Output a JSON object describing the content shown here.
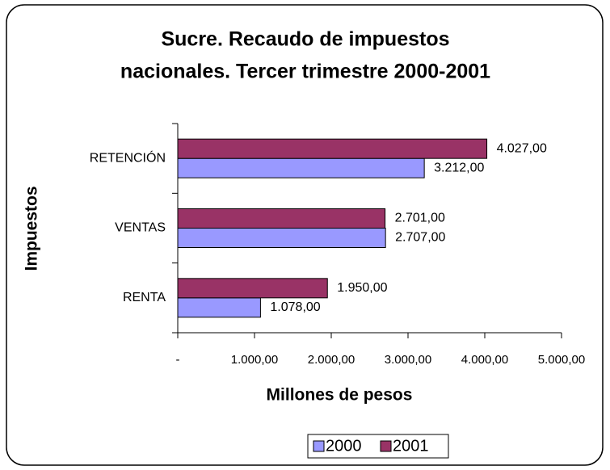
{
  "chart_data": {
    "type": "barh",
    "title": [
      "Sucre. Recaudo de impuestos",
      "nacionales. Tercer trimestre 2000-2001"
    ],
    "x_label": "Millones de pesos",
    "y_label": "Impuestos",
    "categories": [
      "RENTA",
      "VENTAS",
      "RETENCIÓN"
    ],
    "series": [
      {
        "name": "2000",
        "color": "#9999ff",
        "values": [
          1078,
          2707,
          3212
        ],
        "value_labels": [
          "1.078,00",
          "2.707,00",
          "3.212,00"
        ]
      },
      {
        "name": "2001",
        "color": "#993366",
        "values": [
          1950,
          2701,
          4027
        ],
        "value_labels": [
          "1.950,00",
          "2.701,00",
          "4.027,00"
        ]
      }
    ],
    "xlim": [
      0,
      5000
    ],
    "xticks": [
      {
        "value": 0,
        "label": "-"
      },
      {
        "value": 1000,
        "label": "1.000,00"
      },
      {
        "value": 2000,
        "label": "2.000,00"
      },
      {
        "value": 3000,
        "label": "3.000,00"
      },
      {
        "value": 4000,
        "label": "4.000,00"
      },
      {
        "value": 5000,
        "label": "5.000,00"
      }
    ],
    "legend": "bottom"
  }
}
